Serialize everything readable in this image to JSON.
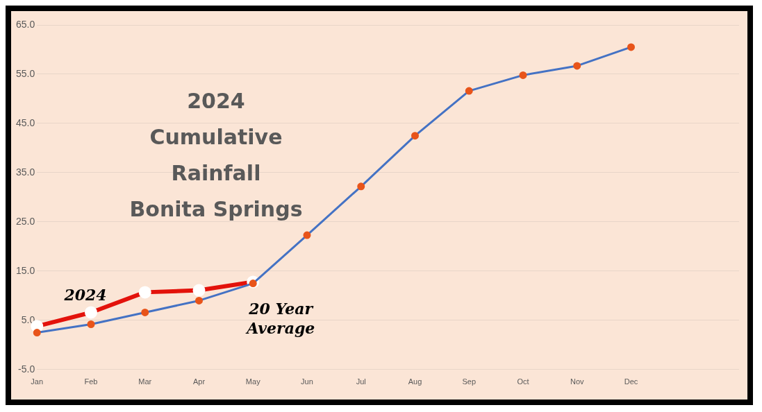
{
  "chart_data": {
    "type": "line",
    "title": "2024 Cumulative Rainfall Bonita Springs",
    "categories": [
      "Jan",
      "Feb",
      "Mar",
      "Apr",
      "May",
      "Jun",
      "Jul",
      "Aug",
      "Sep",
      "Oct",
      "Nov",
      "Dec",
      null,
      null
    ],
    "series": [
      {
        "name": "2024",
        "color": "#e3120b",
        "values": [
          3.8,
          6.6,
          10.7,
          11.1,
          12.8,
          null,
          null,
          null,
          null,
          null,
          null,
          null,
          null,
          null
        ]
      },
      {
        "name": "20 Year Average",
        "color": "#4472c4",
        "values": [
          2.5,
          4.2,
          6.6,
          9.0,
          12.5,
          22.3,
          32.2,
          42.5,
          51.6,
          54.8,
          56.7,
          60.5,
          null,
          null
        ]
      }
    ],
    "ylim": [
      -5,
      65
    ],
    "yticks": [
      {
        "value": -5,
        "label": "-5.0"
      },
      {
        "value": 5,
        "label": "5.0"
      },
      {
        "value": 15,
        "label": "15.0"
      },
      {
        "value": 25,
        "label": "25.0"
      },
      {
        "value": 35,
        "label": "35.0"
      },
      {
        "value": 45,
        "label": "45.0"
      },
      {
        "value": 55,
        "label": "55.0"
      },
      {
        "value": 65,
        "label": "65.0"
      }
    ],
    "grid": "y",
    "legend": false,
    "marker": "circle"
  }
}
